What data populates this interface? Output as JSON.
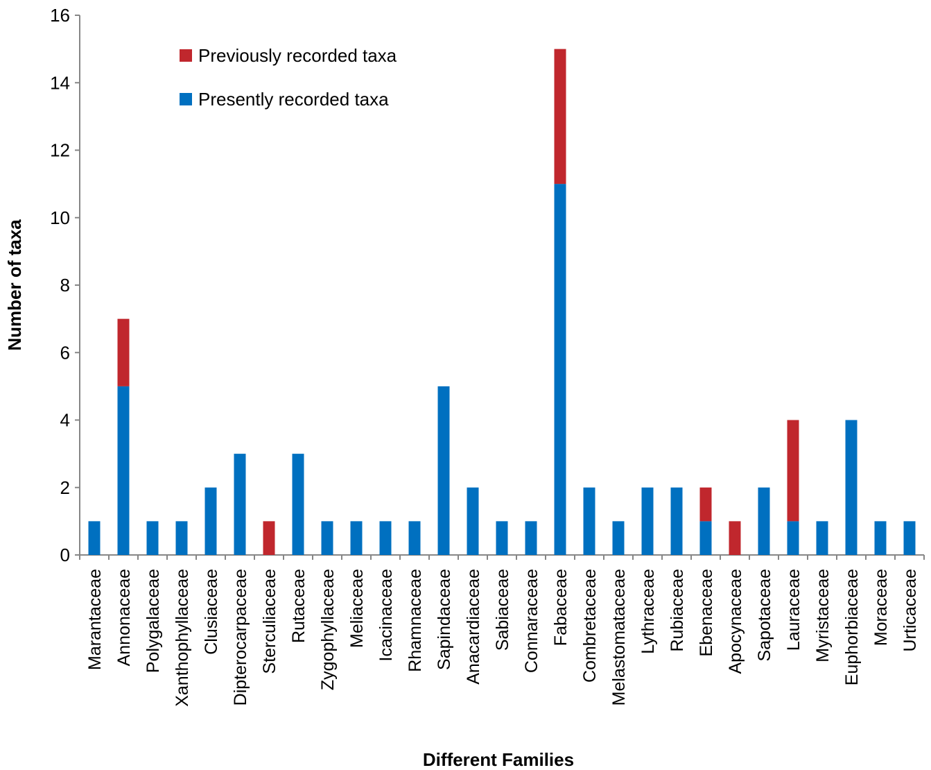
{
  "chart_data": {
    "type": "bar",
    "stacked": true,
    "xlabel": "Different Families",
    "ylabel": "Number of taxa",
    "ylim": [
      0,
      16
    ],
    "yticks": [
      "0",
      "2",
      "4",
      "6",
      "8",
      "10",
      "12",
      "14",
      "16"
    ],
    "legend_position": "top-left",
    "categories": [
      "Marantaceae",
      "Annonaceae",
      "Polygalaceae",
      "Xanthophyllaceae",
      "Clusiaceae",
      "Dipterocarpaceae",
      "Sterculiaceae",
      "Rutaceae",
      "Zygophyllaceae",
      "Meliaceae",
      "Icacinaceae",
      "Rhamnaceae",
      "Sapindaceae",
      "Anacardiaceae",
      "Sabiaceae",
      "Connaraceae",
      "Fabaceae",
      "Combretaceae",
      "Melastomataceae",
      "Lythraceae",
      "Rubiaceae",
      "Ebenaceae",
      "Apocynaceae",
      "Sapotaceae",
      "Lauraceae",
      "Myristaceae",
      "Euphorbiaceae",
      "Moraceae",
      "Urticaceae"
    ],
    "series": [
      {
        "name": "Presently recorded taxa",
        "color": "#0070C0",
        "values": [
          1,
          5,
          1,
          1,
          2,
          3,
          0,
          3,
          1,
          1,
          1,
          1,
          5,
          2,
          1,
          1,
          11,
          2,
          1,
          2,
          2,
          1,
          0,
          2,
          1,
          1,
          4,
          1,
          1
        ]
      },
      {
        "name": "Previously recorded taxa",
        "color": "#C0272D",
        "values": [
          0,
          2,
          0,
          0,
          0,
          0,
          1,
          0,
          0,
          0,
          0,
          0,
          0,
          0,
          0,
          0,
          4,
          0,
          0,
          0,
          0,
          1,
          1,
          0,
          3,
          0,
          0,
          0,
          0
        ]
      }
    ],
    "legend": [
      {
        "name": "Previously recorded taxa",
        "color": "#C0272D"
      },
      {
        "name": "Presently recorded taxa",
        "color": "#0070C0"
      }
    ]
  }
}
